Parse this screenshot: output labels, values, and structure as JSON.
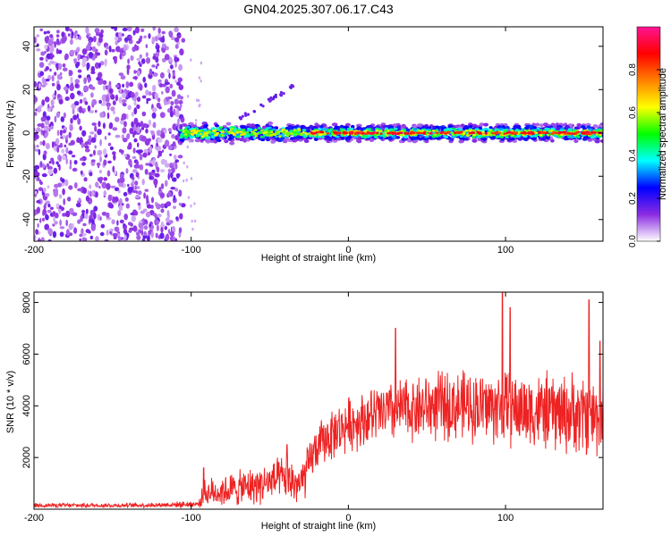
{
  "title": "GN04.2025.307.06.17.C43",
  "chart_data": [
    {
      "type": "heatmap",
      "xlabel": "Height of straight line (km)",
      "ylabel": "Frequency (Hz)",
      "xlim": [
        -200,
        162
      ],
      "ylim": [
        -50,
        49
      ],
      "xticks": [
        -200,
        -100,
        0,
        100
      ],
      "yticks": [
        -40,
        -20,
        0,
        20,
        40
      ],
      "noise_region_x": [
        -200,
        -105
      ],
      "signal_band": {
        "x": [
          -107,
          162
        ],
        "center_freq": 0,
        "half_width": 4
      },
      "colorbar": {
        "label": "Normalized spectral amplitude",
        "range": [
          0,
          1
        ],
        "ticks": [
          0.0,
          0.2,
          0.4,
          0.6,
          0.8
        ],
        "tick_labels": [
          "0.0",
          "0.2",
          "0.4",
          "0.6",
          "0.8"
        ],
        "colors": [
          "#ffffff",
          "#8a2be2",
          "#0000ff",
          "#00ffff",
          "#00ff00",
          "#ffff00",
          "#ff8000",
          "#ff0000",
          "#ff1493"
        ]
      }
    },
    {
      "type": "line",
      "xlabel": "Height of straight line (km)",
      "ylabel": "SNR (10 * v/v)",
      "xlim": [
        -200,
        162
      ],
      "ylim": [
        0,
        8400
      ],
      "xticks": [
        -200,
        -100,
        0,
        100
      ],
      "yticks": [
        2000,
        4000,
        6000,
        8000
      ],
      "line_color": "#ee2222",
      "envelope": {
        "x": [
          -200,
          -130,
          -95,
          -92,
          -80,
          -60,
          -40,
          -30,
          -22,
          -15,
          0,
          20,
          40,
          60,
          80,
          100,
          120,
          140,
          162
        ],
        "mean": [
          150,
          150,
          200,
          600,
          700,
          900,
          1200,
          900,
          2200,
          2700,
          3300,
          3700,
          3900,
          4000,
          4000,
          3900,
          3800,
          3700,
          3600
        ],
        "spread": [
          80,
          80,
          120,
          500,
          600,
          700,
          800,
          900,
          800,
          900,
          1000,
          1100,
          1200,
          1300,
          1300,
          1400,
          1400,
          1500,
          1500
        ]
      },
      "peaks": [
        [
          -92,
          1600
        ],
        [
          -39,
          2500
        ],
        [
          30,
          7000
        ],
        [
          98,
          8400
        ],
        [
          103,
          7800
        ],
        [
          153,
          8100
        ],
        [
          160,
          6500
        ]
      ]
    }
  ]
}
